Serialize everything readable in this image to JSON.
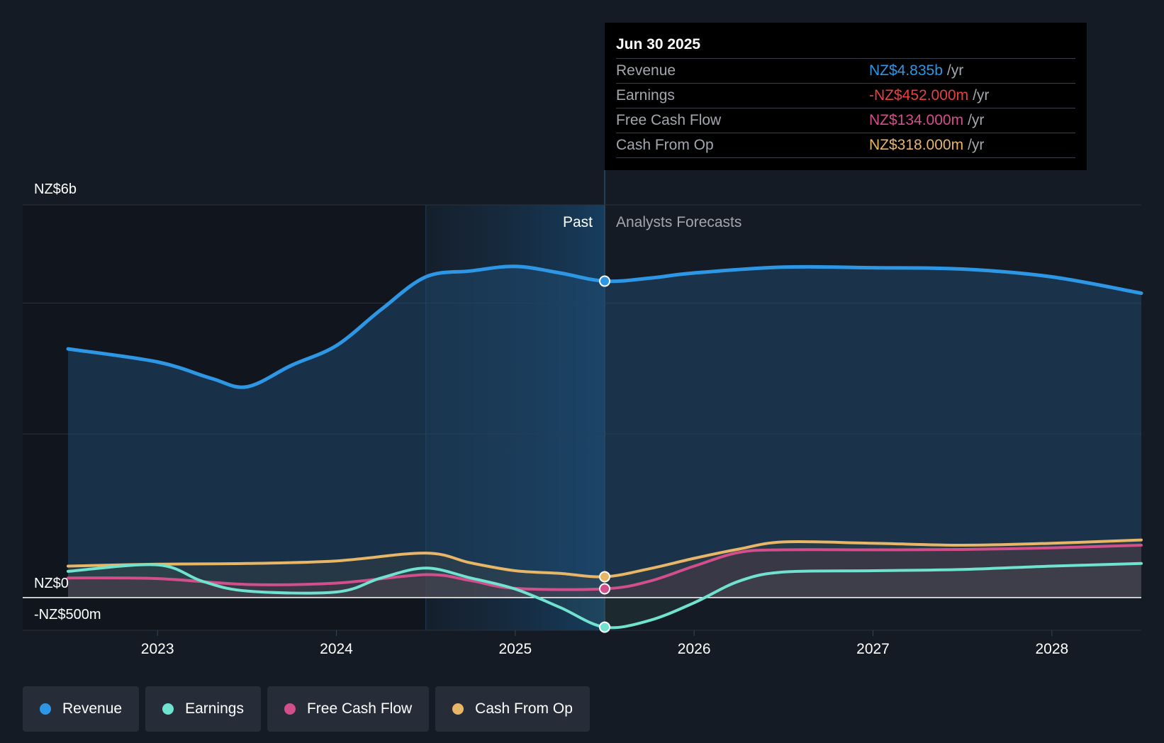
{
  "chart_data": {
    "type": "line",
    "y_axis_labels": [
      {
        "value": 6000,
        "label": "NZ$6b"
      },
      {
        "value": 0,
        "label": "NZ$0"
      },
      {
        "value": -500,
        "label": "-NZ$500m"
      }
    ],
    "ylim": [
      -500,
      6000
    ],
    "x_ticks": [
      "2023",
      "2024",
      "2025",
      "2026",
      "2027",
      "2028"
    ],
    "xlim": [
      2022.5,
      2028.5
    ],
    "past_label": "Past",
    "forecast_label": "Analysts Forecasts",
    "divider_x": 2025.5,
    "series": [
      {
        "name": "Revenue",
        "color": "#2d97e5",
        "points": [
          [
            2022.5,
            3800
          ],
          [
            2023.0,
            3600
          ],
          [
            2023.3,
            3350
          ],
          [
            2023.5,
            3220
          ],
          [
            2023.75,
            3550
          ],
          [
            2024.0,
            3850
          ],
          [
            2024.25,
            4400
          ],
          [
            2024.5,
            4900
          ],
          [
            2024.75,
            4990
          ],
          [
            2025.0,
            5060
          ],
          [
            2025.25,
            4960
          ],
          [
            2025.5,
            4835
          ],
          [
            2025.75,
            4880
          ],
          [
            2026.0,
            4960
          ],
          [
            2026.5,
            5050
          ],
          [
            2027.0,
            5040
          ],
          [
            2027.5,
            5020
          ],
          [
            2028.0,
            4900
          ],
          [
            2028.5,
            4650
          ]
        ]
      },
      {
        "name": "Earnings",
        "color": "#6fe3cf",
        "points": [
          [
            2022.5,
            400
          ],
          [
            2023.0,
            500
          ],
          [
            2023.25,
            250
          ],
          [
            2023.5,
            100
          ],
          [
            2024.0,
            85
          ],
          [
            2024.25,
            300
          ],
          [
            2024.5,
            450
          ],
          [
            2024.75,
            300
          ],
          [
            2025.0,
            130
          ],
          [
            2025.25,
            -150
          ],
          [
            2025.5,
            -452
          ],
          [
            2025.75,
            -350
          ],
          [
            2026.0,
            -80
          ],
          [
            2026.25,
            250
          ],
          [
            2026.5,
            390
          ],
          [
            2027.0,
            410
          ],
          [
            2027.5,
            430
          ],
          [
            2028.0,
            480
          ],
          [
            2028.5,
            520
          ]
        ]
      },
      {
        "name": "Free Cash Flow",
        "color": "#d14f8b",
        "points": [
          [
            2022.5,
            300
          ],
          [
            2023.0,
            290
          ],
          [
            2023.5,
            200
          ],
          [
            2024.0,
            220
          ],
          [
            2024.5,
            350
          ],
          [
            2024.75,
            260
          ],
          [
            2025.0,
            140
          ],
          [
            2025.5,
            134
          ],
          [
            2025.75,
            250
          ],
          [
            2026.0,
            480
          ],
          [
            2026.25,
            690
          ],
          [
            2026.5,
            730
          ],
          [
            2027.0,
            730
          ],
          [
            2027.5,
            735
          ],
          [
            2028.0,
            760
          ],
          [
            2028.5,
            800
          ]
        ]
      },
      {
        "name": "Cash From Op",
        "color": "#e8b667",
        "points": [
          [
            2022.5,
            480
          ],
          [
            2023.0,
            510
          ],
          [
            2023.5,
            520
          ],
          [
            2024.0,
            560
          ],
          [
            2024.5,
            680
          ],
          [
            2024.75,
            530
          ],
          [
            2025.0,
            410
          ],
          [
            2025.25,
            370
          ],
          [
            2025.5,
            318
          ],
          [
            2025.75,
            440
          ],
          [
            2026.0,
            600
          ],
          [
            2026.25,
            740
          ],
          [
            2026.5,
            850
          ],
          [
            2027.0,
            830
          ],
          [
            2027.5,
            800
          ],
          [
            2028.0,
            830
          ],
          [
            2028.5,
            880
          ]
        ]
      }
    ]
  },
  "tooltip": {
    "date": "Jun 30 2025",
    "rows": [
      {
        "name": "Revenue",
        "value": "NZ$4.835b",
        "unit": "/yr",
        "color": "#2d97e5"
      },
      {
        "name": "Earnings",
        "value": "-NZ$452.000m",
        "unit": "/yr",
        "color": "#e6423f"
      },
      {
        "name": "Free Cash Flow",
        "value": "NZ$134.000m",
        "unit": "/yr",
        "color": "#d14f8b"
      },
      {
        "name": "Cash From Op",
        "value": "NZ$318.000m",
        "unit": "/yr",
        "color": "#e8b667"
      }
    ]
  },
  "legend": [
    {
      "label": "Revenue",
      "color": "#2d97e5"
    },
    {
      "label": "Earnings",
      "color": "#6fe3cf"
    },
    {
      "label": "Free Cash Flow",
      "color": "#d14f8b"
    },
    {
      "label": "Cash From Op",
      "color": "#e8b667"
    }
  ]
}
